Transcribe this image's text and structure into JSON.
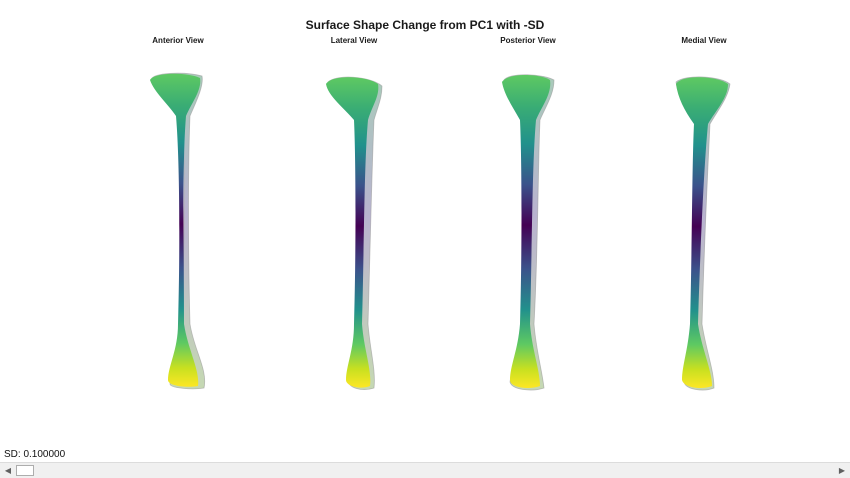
{
  "figure": {
    "title": "Surface Shape Change from PC1 with -SD",
    "views": [
      {
        "label": "Anterior View"
      },
      {
        "label": "Lateral View"
      },
      {
        "label": "Posterior View"
      },
      {
        "label": "Medial View"
      }
    ]
  },
  "status": {
    "sd_text": "SD: 0.100000"
  },
  "scrollbar": {
    "left_arrow": "◀",
    "right_arrow": "▶",
    "position": 0.0
  },
  "colors": {
    "colormap": [
      "#fde725",
      "#5ec962",
      "#21918c",
      "#3b528b",
      "#440154"
    ],
    "shadow_surface": "#8a7fb0"
  }
}
